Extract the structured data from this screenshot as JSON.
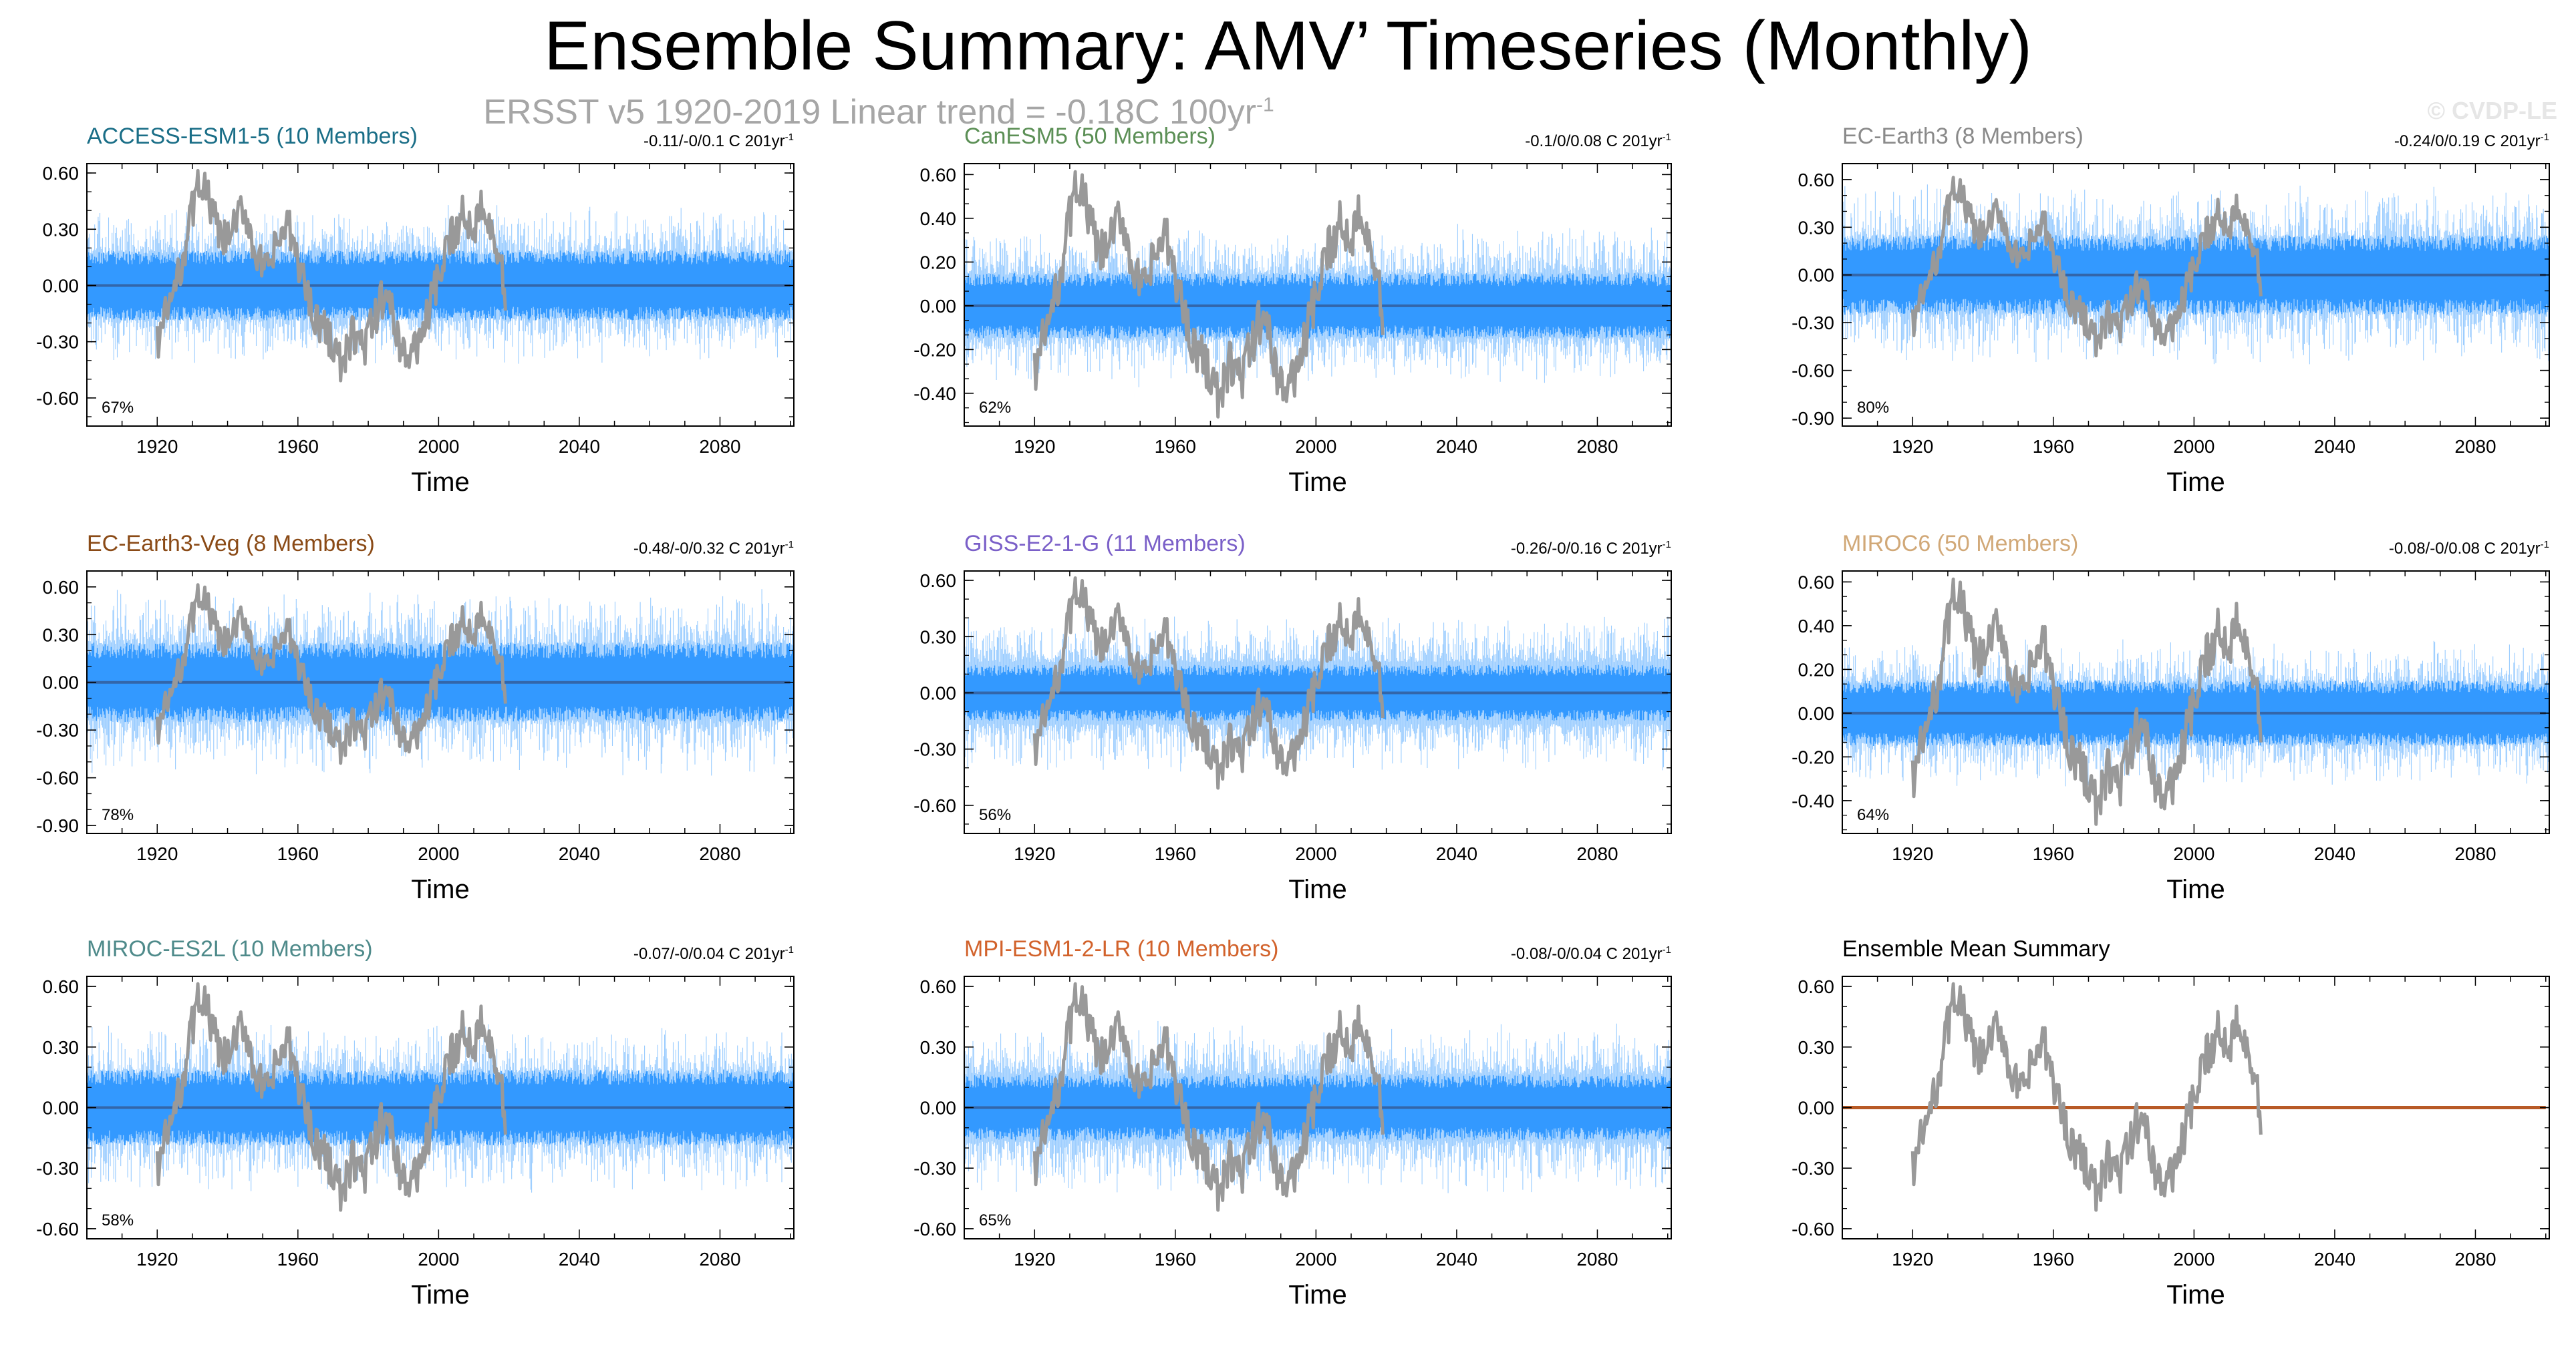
{
  "header": {
    "title": "Ensemble Summary: AMV’ Timeseries (Monthly)",
    "subtitle_prefix": "ERSST v5 1920-2019  Linear trend = -0.18C 100yr",
    "subtitle_exp": "-1",
    "credit": "© CVDP-LE"
  },
  "colors": {
    "ensemble_spread": "#3399ff",
    "ensemble_light": "#99ccff",
    "observations": "#999999",
    "mean_line": "#3366aa",
    "ensemble_mean_line": "#b85a26"
  },
  "chart_data": [
    {
      "type": "line",
      "title": "ACCESS-ESM1-5 (10 Members)",
      "title_color": "#1a6e87",
      "trend_text": "-0.11/-0/0.1 C 201yr",
      "trend_exp": "-1",
      "percent": "67%",
      "xlabel": "Time",
      "ylabel": "",
      "xlim": [
        1900,
        2101
      ],
      "ylim": [
        -0.75,
        0.65
      ],
      "yticks": [
        "0.60",
        "0.30",
        "0.00",
        "-0.30",
        "-0.60"
      ],
      "ytick_values": [
        0.6,
        0.3,
        0,
        -0.3,
        -0.6
      ],
      "xticks": [
        "1920",
        "1960",
        "2000",
        "2040",
        "2080"
      ],
      "xtick_values": [
        1920,
        1960,
        2000,
        2040,
        2080
      ],
      "spread_dark": 0.15,
      "spread_light": 0.3,
      "series": [
        {
          "name": "Ensemble mean",
          "x": [
            1900,
            2100
          ],
          "y": [
            0,
            0
          ]
        },
        {
          "name": "ERSST v5 observations",
          "x_range": [
            1920,
            2019
          ],
          "y": [
            -0.3,
            -0.12,
            0.05,
            0.35,
            0.58,
            0.4,
            0.22,
            0.3,
            0.42,
            0.18,
            0.05,
            0.22,
            0.32,
            0.12,
            -0.08,
            -0.22,
            -0.28,
            -0.45,
            -0.25,
            -0.33,
            -0.18,
            -0.02,
            -0.25,
            -0.4,
            -0.3,
            -0.12,
            0.05,
            0.25,
            0.38,
            0.3,
            0.48,
            0.26,
            -0.05
          ]
        }
      ]
    },
    {
      "type": "line",
      "title": "CanESM5 (50 Members)",
      "title_color": "#5b8f55",
      "trend_text": "-0.1/0/0.08 C 201yr",
      "trend_exp": "-1",
      "percent": "62%",
      "xlabel": "Time",
      "ylabel": "",
      "xlim": [
        1900,
        2101
      ],
      "ylim": [
        -0.55,
        0.65
      ],
      "yticks": [
        "0.60",
        "0.40",
        "0.20",
        "0.00",
        "-0.20",
        "-0.40"
      ],
      "ytick_values": [
        0.6,
        0.4,
        0.2,
        0,
        -0.2,
        -0.4
      ],
      "xticks": [
        "1920",
        "1960",
        "2000",
        "2040",
        "2080"
      ],
      "xtick_values": [
        1920,
        1960,
        2000,
        2040,
        2080
      ],
      "spread_dark": 0.12,
      "spread_light": 0.26,
      "series": [
        {
          "name": "Ensemble mean",
          "x": [
            1900,
            2100
          ],
          "y": [
            0,
            0
          ]
        },
        {
          "name": "ERSST v5 observations",
          "x_range": [
            1920,
            2019
          ],
          "y": [
            -0.3,
            -0.12,
            0.05,
            0.35,
            0.58,
            0.4,
            0.22,
            0.3,
            0.42,
            0.18,
            0.05,
            0.22,
            0.32,
            0.12,
            -0.08,
            -0.22,
            -0.28,
            -0.45,
            -0.25,
            -0.33,
            -0.18,
            -0.02,
            -0.25,
            -0.4,
            -0.3,
            -0.12,
            0.05,
            0.25,
            0.38,
            0.3,
            0.48,
            0.26,
            -0.05
          ]
        }
      ]
    },
    {
      "type": "line",
      "title": "EC-Earth3 (8 Members)",
      "title_color": "#8a8a8a",
      "trend_text": "-0.24/0/0.19 C 201yr",
      "trend_exp": "-1",
      "percent": "80%",
      "xlabel": "Time",
      "ylabel": "",
      "xlim": [
        1900,
        2101
      ],
      "ylim": [
        -0.95,
        0.7
      ],
      "yticks": [
        "0.60",
        "0.30",
        "0.00",
        "-0.30",
        "-0.60",
        "-0.90"
      ],
      "ytick_values": [
        0.6,
        0.3,
        0,
        -0.3,
        -0.6,
        -0.9
      ],
      "xticks": [
        "1920",
        "1960",
        "2000",
        "2040",
        "2080"
      ],
      "xtick_values": [
        1920,
        1960,
        2000,
        2040,
        2080
      ],
      "spread_dark": 0.2,
      "spread_light": 0.4,
      "series": [
        {
          "name": "Ensemble mean",
          "x": [
            1900,
            2100
          ],
          "y": [
            0,
            0
          ]
        },
        {
          "name": "ERSST v5 observations",
          "x_range": [
            1920,
            2019
          ],
          "y": [
            -0.3,
            -0.12,
            0.05,
            0.35,
            0.58,
            0.4,
            0.22,
            0.3,
            0.42,
            0.18,
            0.05,
            0.22,
            0.32,
            0.12,
            -0.08,
            -0.22,
            -0.28,
            -0.45,
            -0.25,
            -0.33,
            -0.18,
            -0.02,
            -0.25,
            -0.4,
            -0.3,
            -0.12,
            0.05,
            0.25,
            0.38,
            0.3,
            0.48,
            0.26,
            -0.05
          ]
        }
      ]
    },
    {
      "type": "line",
      "title": "EC-Earth3-Veg (8 Members)",
      "title_color": "#8a4a16",
      "trend_text": "-0.48/-0/0.32 C 201yr",
      "trend_exp": "-1",
      "percent": "78%",
      "xlabel": "Time",
      "ylabel": "",
      "xlim": [
        1900,
        2101
      ],
      "ylim": [
        -0.95,
        0.7
      ],
      "yticks": [
        "0.60",
        "0.30",
        "0.00",
        "-0.30",
        "-0.60",
        "-0.90"
      ],
      "ytick_values": [
        0.6,
        0.3,
        0,
        -0.3,
        -0.6,
        -0.9
      ],
      "xticks": [
        "1920",
        "1960",
        "2000",
        "2040",
        "2080"
      ],
      "xtick_values": [
        1920,
        1960,
        2000,
        2040,
        2080
      ],
      "spread_dark": 0.2,
      "spread_light": 0.42,
      "series": [
        {
          "name": "Ensemble mean",
          "x": [
            1900,
            2100
          ],
          "y": [
            0,
            0
          ]
        },
        {
          "name": "ERSST v5 observations",
          "x_range": [
            1920,
            2019
          ],
          "y": [
            -0.3,
            -0.12,
            0.05,
            0.35,
            0.58,
            0.4,
            0.22,
            0.3,
            0.42,
            0.18,
            0.05,
            0.22,
            0.32,
            0.12,
            -0.08,
            -0.22,
            -0.28,
            -0.45,
            -0.25,
            -0.33,
            -0.18,
            -0.02,
            -0.25,
            -0.4,
            -0.3,
            -0.12,
            0.05,
            0.25,
            0.38,
            0.3,
            0.48,
            0.26,
            -0.05
          ]
        }
      ]
    },
    {
      "type": "line",
      "title": "GISS-E2-1-G (11 Members)",
      "title_color": "#7a5fc8",
      "trend_text": "-0.26/-0/0.16 C 201yr",
      "trend_exp": "-1",
      "percent": "56%",
      "xlabel": "Time",
      "ylabel": "",
      "xlim": [
        1900,
        2101
      ],
      "ylim": [
        -0.75,
        0.65
      ],
      "yticks": [
        "0.60",
        "0.30",
        "0.00",
        "-0.30",
        "-0.60"
      ],
      "ytick_values": [
        0.6,
        0.3,
        0,
        -0.3,
        -0.6
      ],
      "xticks": [
        "1920",
        "1960",
        "2000",
        "2040",
        "2080"
      ],
      "xtick_values": [
        1920,
        1960,
        2000,
        2040,
        2080
      ],
      "spread_dark": 0.12,
      "spread_light": 0.3,
      "series": [
        {
          "name": "Ensemble mean",
          "x": [
            1900,
            2100
          ],
          "y": [
            0,
            0
          ]
        },
        {
          "name": "ERSST v5 observations",
          "x_range": [
            1920,
            2019
          ],
          "y": [
            -0.3,
            -0.12,
            0.05,
            0.35,
            0.58,
            0.4,
            0.22,
            0.3,
            0.42,
            0.18,
            0.05,
            0.22,
            0.32,
            0.12,
            -0.08,
            -0.22,
            -0.28,
            -0.45,
            -0.25,
            -0.33,
            -0.18,
            -0.02,
            -0.25,
            -0.4,
            -0.3,
            -0.12,
            0.05,
            0.25,
            0.38,
            0.3,
            0.48,
            0.26,
            -0.05
          ]
        }
      ]
    },
    {
      "type": "line",
      "title": "MIROC6 (50 Members)",
      "title_color": "#d1a877",
      "trend_text": "-0.08/-0/0.08 C 201yr",
      "trend_exp": "-1",
      "percent": "64%",
      "xlabel": "Time",
      "ylabel": "",
      "xlim": [
        1900,
        2101
      ],
      "ylim": [
        -0.55,
        0.65
      ],
      "yticks": [
        "0.60",
        "0.40",
        "0.20",
        "0.00",
        "-0.20",
        "-0.40"
      ],
      "ytick_values": [
        0.6,
        0.4,
        0.2,
        0,
        -0.2,
        -0.4
      ],
      "xticks": [
        "1920",
        "1960",
        "2000",
        "2040",
        "2080"
      ],
      "xtick_values": [
        1920,
        1960,
        2000,
        2040,
        2080
      ],
      "spread_dark": 0.12,
      "spread_light": 0.24,
      "series": [
        {
          "name": "Ensemble mean",
          "x": [
            1900,
            2100
          ],
          "y": [
            0,
            0
          ]
        },
        {
          "name": "ERSST v5 observations",
          "x_range": [
            1920,
            2019
          ],
          "y": [
            -0.3,
            -0.12,
            0.05,
            0.35,
            0.58,
            0.4,
            0.22,
            0.3,
            0.42,
            0.18,
            0.05,
            0.22,
            0.32,
            0.12,
            -0.08,
            -0.22,
            -0.28,
            -0.45,
            -0.25,
            -0.33,
            -0.18,
            -0.02,
            -0.25,
            -0.4,
            -0.3,
            -0.12,
            0.05,
            0.25,
            0.38,
            0.3,
            0.48,
            0.26,
            -0.05
          ]
        }
      ]
    },
    {
      "type": "line",
      "title": "MIROC-ES2L (10 Members)",
      "title_color": "#4e8a8a",
      "trend_text": "-0.07/-0/0.04 C 201yr",
      "trend_exp": "-1",
      "percent": "58%",
      "xlabel": "Time",
      "ylabel": "",
      "xlim": [
        1900,
        2101
      ],
      "ylim": [
        -0.65,
        0.65
      ],
      "yticks": [
        "0.60",
        "0.30",
        "0.00",
        "-0.30",
        "-0.60"
      ],
      "ytick_values": [
        0.6,
        0.3,
        0,
        -0.3,
        -0.6
      ],
      "xticks": [
        "1920",
        "1960",
        "2000",
        "2040",
        "2080"
      ],
      "xtick_values": [
        1920,
        1960,
        2000,
        2040,
        2080
      ],
      "spread_dark": 0.15,
      "spread_light": 0.3,
      "series": [
        {
          "name": "Ensemble mean",
          "x": [
            1900,
            2100
          ],
          "y": [
            0,
            0
          ]
        },
        {
          "name": "ERSST v5 observations",
          "x_range": [
            1920,
            2019
          ],
          "y": [
            -0.3,
            -0.12,
            0.05,
            0.35,
            0.58,
            0.4,
            0.22,
            0.3,
            0.42,
            0.18,
            0.05,
            0.22,
            0.32,
            0.12,
            -0.08,
            -0.22,
            -0.28,
            -0.45,
            -0.25,
            -0.33,
            -0.18,
            -0.02,
            -0.25,
            -0.4,
            -0.3,
            -0.12,
            0.05,
            0.25,
            0.38,
            0.3,
            0.48,
            0.26,
            -0.05
          ]
        }
      ]
    },
    {
      "type": "line",
      "title": "MPI-ESM1-2-LR (10 Members)",
      "title_color": "#d2622b",
      "trend_text": "-0.08/-0/0.04 C 201yr",
      "trend_exp": "-1",
      "percent": "65%",
      "xlabel": "Time",
      "ylabel": "",
      "xlim": [
        1900,
        2101
      ],
      "ylim": [
        -0.65,
        0.65
      ],
      "yticks": [
        "0.60",
        "0.30",
        "0.00",
        "-0.30",
        "-0.60"
      ],
      "ytick_values": [
        0.6,
        0.3,
        0,
        -0.3,
        -0.6
      ],
      "xticks": [
        "1920",
        "1960",
        "2000",
        "2040",
        "2080"
      ],
      "xtick_values": [
        1920,
        1960,
        2000,
        2040,
        2080
      ],
      "spread_dark": 0.13,
      "spread_light": 0.3,
      "series": [
        {
          "name": "Ensemble mean",
          "x": [
            1900,
            2100
          ],
          "y": [
            0,
            0
          ]
        },
        {
          "name": "ERSST v5 observations",
          "x_range": [
            1920,
            2019
          ],
          "y": [
            -0.3,
            -0.12,
            0.05,
            0.35,
            0.58,
            0.4,
            0.22,
            0.3,
            0.42,
            0.18,
            0.05,
            0.22,
            0.32,
            0.12,
            -0.08,
            -0.22,
            -0.28,
            -0.45,
            -0.25,
            -0.33,
            -0.18,
            -0.02,
            -0.25,
            -0.4,
            -0.3,
            -0.12,
            0.05,
            0.25,
            0.38,
            0.3,
            0.48,
            0.26,
            -0.05
          ]
        }
      ]
    },
    {
      "type": "line",
      "title": "Ensemble Mean Summary",
      "title_color": "#000000",
      "trend_text": "",
      "trend_exp": "",
      "percent": "",
      "xlabel": "Time",
      "ylabel": "",
      "xlim": [
        1900,
        2101
      ],
      "ylim": [
        -0.65,
        0.65
      ],
      "yticks": [
        "0.60",
        "0.30",
        "0.00",
        "-0.30",
        "-0.60"
      ],
      "ytick_values": [
        0.6,
        0.3,
        0,
        -0.3,
        -0.6
      ],
      "xticks": [
        "1920",
        "1960",
        "2000",
        "2040",
        "2080"
      ],
      "xtick_values": [
        1920,
        1960,
        2000,
        2040,
        2080
      ],
      "spread_dark": 0,
      "spread_light": 0,
      "series": [
        {
          "name": "Ensemble mean of all models",
          "x": [
            1900,
            2100
          ],
          "y": [
            0,
            0
          ]
        },
        {
          "name": "ERSST v5 observations",
          "x_range": [
            1920,
            2019
          ],
          "y": [
            -0.3,
            -0.12,
            0.05,
            0.35,
            0.58,
            0.4,
            0.22,
            0.3,
            0.42,
            0.18,
            0.05,
            0.22,
            0.32,
            0.12,
            -0.08,
            -0.22,
            -0.28,
            -0.45,
            -0.25,
            -0.33,
            -0.18,
            -0.02,
            -0.25,
            -0.4,
            -0.3,
            -0.12,
            0.05,
            0.25,
            0.38,
            0.3,
            0.48,
            0.26,
            -0.05
          ]
        }
      ]
    }
  ]
}
